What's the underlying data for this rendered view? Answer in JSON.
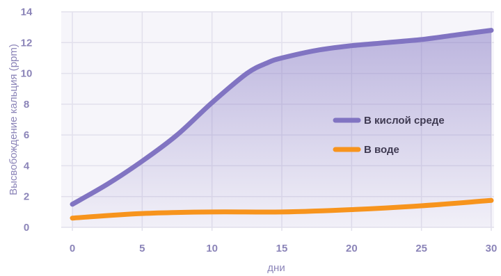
{
  "chart_data": {
    "type": "line",
    "title": "",
    "xlabel": "дни",
    "ylabel": "Высвобождение кальция (ppm)",
    "xlim": [
      0,
      30
    ],
    "ylim": [
      0,
      14
    ],
    "x_ticks": [
      "0",
      "5",
      "10",
      "15",
      "20",
      "25",
      "30"
    ],
    "y_ticks": [
      "0",
      "2",
      "4",
      "6",
      "8",
      "10",
      "12",
      "14"
    ],
    "grid": true,
    "legend_position": "center-right",
    "series": [
      {
        "name": "В кислой среде",
        "color": "#8174c2",
        "area_fill": true,
        "x": [
          0,
          2.5,
          5,
          7.5,
          10,
          12.5,
          14,
          15,
          17.5,
          20,
          22.5,
          25,
          27.5,
          30
        ],
        "y": [
          1.5,
          2.8,
          4.3,
          6.0,
          8.1,
          10.0,
          10.7,
          11.0,
          11.5,
          11.8,
          12.0,
          12.2,
          12.5,
          12.8
        ]
      },
      {
        "name": "В воде",
        "color": "#f7941d",
        "area_fill": false,
        "x": [
          0,
          5,
          10,
          15,
          20,
          25,
          30
        ],
        "y": [
          0.6,
          0.9,
          1.0,
          1.0,
          1.15,
          1.4,
          1.75
        ]
      }
    ]
  }
}
